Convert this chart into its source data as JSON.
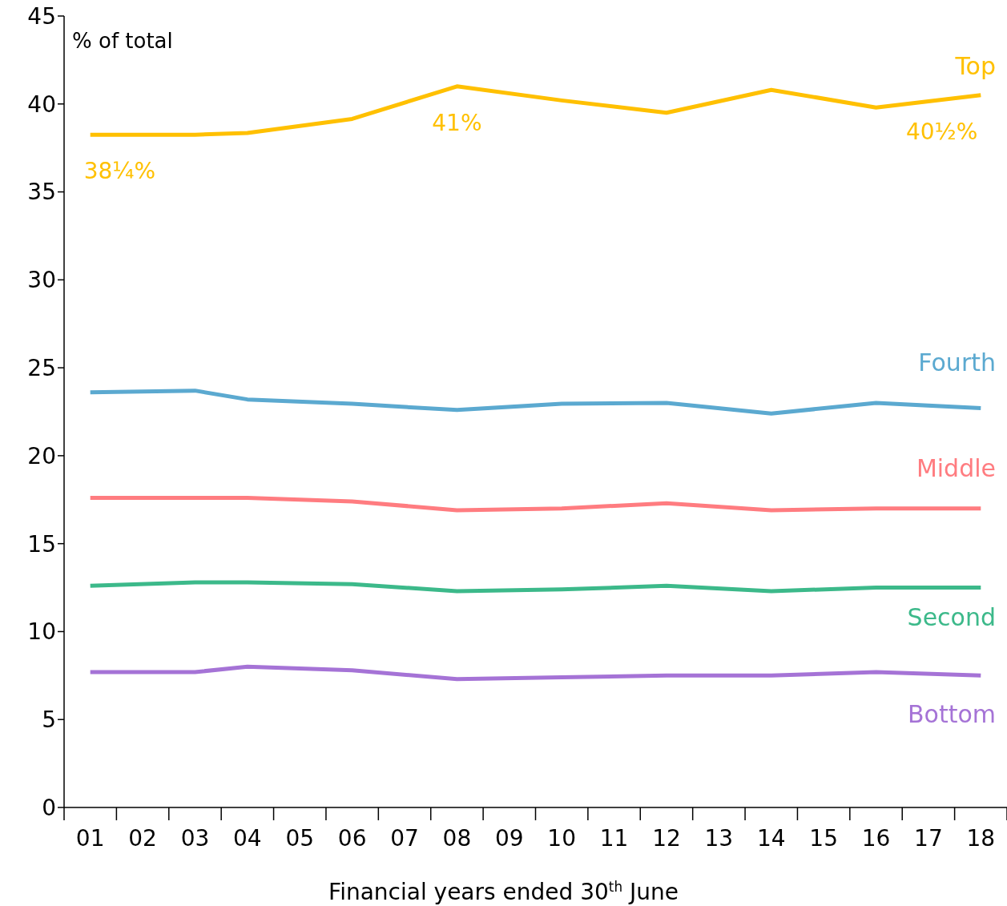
{
  "chart_data": {
    "type": "line",
    "xlabel": "Financial years ended 30$^{th}$ June",
    "ylabel": "% of total",
    "categories": [
      "01",
      "02",
      "03",
      "04",
      "05",
      "06",
      "07",
      "08",
      "09",
      "10",
      "11",
      "12",
      "13",
      "14",
      "15",
      "16",
      "17",
      "18"
    ],
    "series": [
      {
        "name": "Top",
        "color": "#ffc000",
        "values": [
          38.25,
          null,
          38.25,
          38.35,
          null,
          39.15,
          null,
          41,
          null,
          40.2,
          null,
          39.5,
          null,
          40.8,
          null,
          39.8,
          null,
          40.5
        ],
        "value_labels": [
          "38¼%",
          null,
          null,
          null,
          null,
          null,
          null,
          "41%",
          null,
          null,
          null,
          null,
          null,
          null,
          null,
          null,
          null,
          "40½%"
        ]
      },
      {
        "name": "Fourth",
        "color": "#5ba9d0",
        "values": [
          23.6,
          null,
          23.7,
          23.2,
          null,
          22.95,
          null,
          22.6,
          null,
          22.95,
          null,
          23,
          null,
          22.4,
          null,
          23,
          null,
          22.7
        ]
      },
      {
        "name": "Middle",
        "color": "#ff7c80",
        "values": [
          17.6,
          null,
          17.6,
          17.6,
          null,
          17.4,
          null,
          16.9,
          null,
          17,
          null,
          17.3,
          null,
          16.9,
          null,
          17,
          null,
          17
        ]
      },
      {
        "name": "Second",
        "color": "#3cb98a",
        "values": [
          12.6,
          null,
          12.8,
          12.8,
          null,
          12.7,
          null,
          12.3,
          null,
          12.4,
          null,
          12.6,
          null,
          12.3,
          null,
          12.5,
          null,
          12.5
        ]
      },
      {
        "name": "Bottom",
        "color": "#a573d6",
        "values": [
          7.7,
          null,
          7.7,
          8,
          null,
          7.8,
          null,
          7.3,
          null,
          7.4,
          null,
          7.5,
          null,
          7.5,
          null,
          7.7,
          null,
          7.5
        ]
      }
    ],
    "ylim": [
      0,
      45
    ],
    "yticks": [
      0,
      5,
      10,
      15,
      20,
      25,
      30,
      35,
      40,
      45
    ],
    "grid": false
  }
}
